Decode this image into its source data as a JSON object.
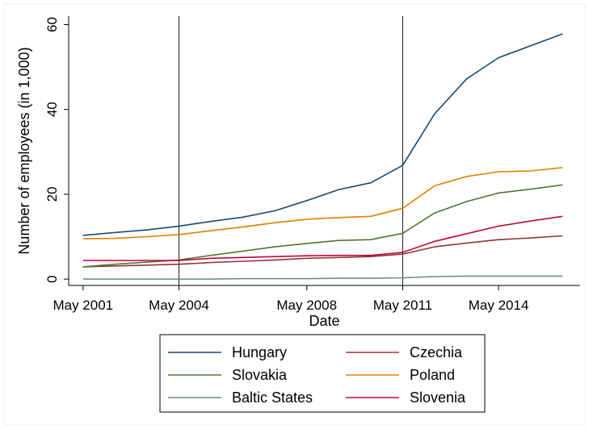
{
  "chart_data": {
    "type": "line",
    "xlabel": "Date",
    "ylabel": "Number of employees (in 1,000)",
    "x_ticks": [
      "May 2001",
      "May 2004",
      "May 2008",
      "May 2011",
      "May 2014"
    ],
    "x_tick_values": [
      2001.35,
      2004.35,
      2008.35,
      2011.35,
      2014.35
    ],
    "y_ticks": [
      0,
      20,
      40,
      60
    ],
    "xlim": [
      2000.9,
      2016.9
    ],
    "ylim": [
      -1.5,
      62
    ],
    "vertical_lines": [
      2004.35,
      2011.35
    ],
    "grid": false,
    "legend_position": "bottom",
    "x": [
      2001.35,
      2002.35,
      2003.35,
      2004.35,
      2005.35,
      2006.35,
      2007.35,
      2008.35,
      2009.35,
      2010.35,
      2011.35,
      2012.35,
      2013.35,
      2014.35,
      2015.35,
      2016.35
    ],
    "series": [
      {
        "name": "Hungary",
        "color": "#1a476f",
        "values": [
          10.3,
          11.0,
          11.6,
          12.5,
          13.6,
          14.6,
          16.1,
          18.5,
          21.1,
          22.7,
          26.8,
          39.0,
          47.2,
          52.2,
          55.0,
          57.8
        ]
      },
      {
        "name": "Czechia",
        "color": "#90353b",
        "values": [
          2.9,
          3.1,
          3.3,
          3.5,
          3.9,
          4.2,
          4.5,
          4.9,
          5.1,
          5.3,
          5.9,
          7.6,
          8.5,
          9.3,
          9.7,
          10.2
        ]
      },
      {
        "name": "Slovakia",
        "color": "#55752f",
        "values": [
          2.9,
          3.5,
          4.0,
          4.5,
          5.6,
          6.6,
          7.6,
          8.4,
          9.1,
          9.3,
          10.8,
          15.6,
          18.3,
          20.3,
          21.2,
          22.2
        ]
      },
      {
        "name": "Poland",
        "color": "#e37e00",
        "values": [
          9.5,
          9.6,
          10.0,
          10.5,
          11.4,
          12.3,
          13.3,
          14.1,
          14.5,
          14.8,
          16.7,
          22.0,
          24.2,
          25.3,
          25.5,
          26.3
        ]
      },
      {
        "name": "Baltic States",
        "color": "#6e8e84",
        "values": [
          0.0,
          0.0,
          0.0,
          0.0,
          0.0,
          0.1,
          0.1,
          0.1,
          0.2,
          0.2,
          0.3,
          0.6,
          0.7,
          0.7,
          0.7,
          0.7
        ]
      },
      {
        "name": "Slovenia",
        "color": "#c10534",
        "values": [
          4.4,
          4.4,
          4.4,
          4.4,
          4.9,
          5.1,
          5.3,
          5.5,
          5.6,
          5.6,
          6.3,
          8.9,
          10.7,
          12.5,
          13.7,
          14.8
        ]
      }
    ]
  }
}
